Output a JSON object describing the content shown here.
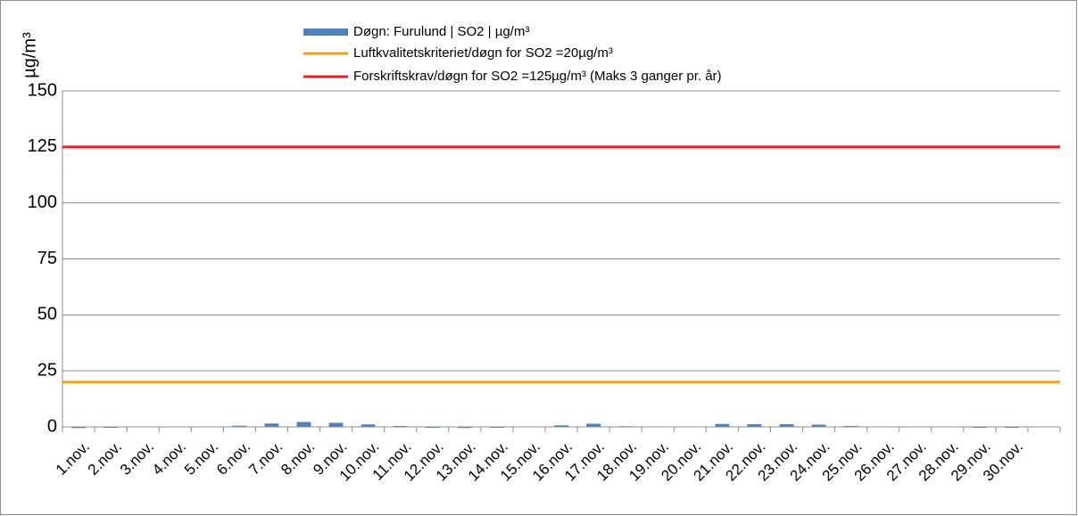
{
  "chart_data": {
    "type": "bar",
    "y_label": "µg/m³",
    "categories": [
      "1.nov.",
      "2.nov.",
      "3.nov.",
      "4.nov.",
      "5.nov.",
      "6.nov.",
      "7.nov.",
      "8.nov.",
      "9.nov.",
      "10.nov.",
      "11.nov.",
      "12.nov.",
      "13.nov.",
      "14.nov.",
      "15.nov.",
      "16.nov.",
      "17.nov.",
      "18.nov.",
      "19.nov.",
      "20.nov.",
      "21.nov.",
      "22.nov.",
      "23.nov.",
      "24.nov.",
      "25.nov.",
      "26.nov.",
      "27.nov.",
      "28.nov.",
      "29.nov.",
      "30.nov.",
      null
    ],
    "series": [
      {
        "name": "Døgn: Furulund | SO2 | µg/m³",
        "color": "#4f81bd",
        "values": [
          -0.5,
          -0.4,
          0,
          0.1,
          0.2,
          0.5,
          1.5,
          2.2,
          1.8,
          1.1,
          0.4,
          -0.4,
          -0.5,
          -0.4,
          0.2,
          0.7,
          1.4,
          0.3,
          0,
          0.2,
          1.3,
          1.2,
          1.2,
          1.0,
          0.4,
          0,
          0,
          0,
          -0.4,
          -0.4,
          null
        ]
      }
    ],
    "reference_lines": [
      {
        "name": "Luftkvalitetskriteriet/døgn for SO2 =20µg/m³",
        "value": 20,
        "color": "#f79e1b"
      },
      {
        "name": "Forskriftskrav/døgn for SO2 =125µg/m³  (Maks 3 ganger pr. år)",
        "value": 125,
        "color": "#ee1c1c"
      }
    ],
    "ylim": [
      0,
      150
    ],
    "yticks": [
      0,
      25,
      50,
      75,
      100,
      125,
      150
    ],
    "grid": true
  }
}
